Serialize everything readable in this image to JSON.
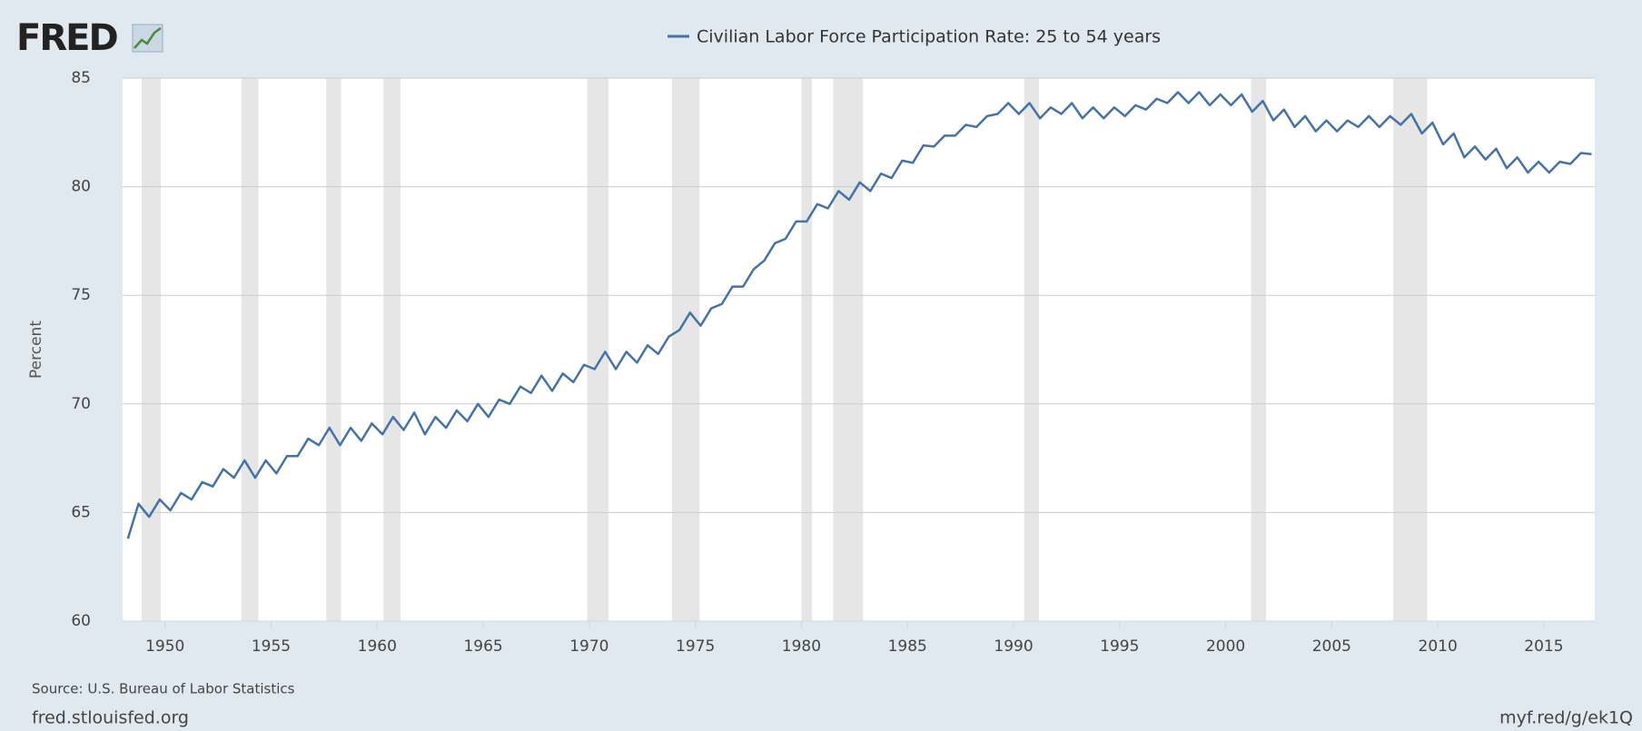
{
  "logo": "FRED",
  "chart_data": {
    "type": "line",
    "ylabel": "Percent",
    "xlim": [
      1948,
      2017.4
    ],
    "xticks": [
      1950,
      1955,
      1960,
      1965,
      1970,
      1975,
      1980,
      1985,
      1990,
      1995,
      2000,
      2005,
      2010,
      2015
    ],
    "ylim": [
      60,
      85
    ],
    "yticks": [
      60,
      65,
      70,
      75,
      80,
      85
    ],
    "grid": true,
    "recessions": [
      [
        1948.9,
        1949.8
      ],
      [
        1953.6,
        1954.4
      ],
      [
        1957.6,
        1958.3
      ],
      [
        1960.3,
        1961.1
      ],
      [
        1969.9,
        1970.9
      ],
      [
        1973.9,
        1975.2
      ],
      [
        1980.0,
        1980.5
      ],
      [
        1981.5,
        1982.9
      ],
      [
        1990.5,
        1991.2
      ],
      [
        2001.2,
        2001.9
      ],
      [
        2007.9,
        2009.5
      ]
    ],
    "x": [
      1948.25,
      1948.75,
      1949.25,
      1949.75,
      1950.25,
      1950.75,
      1951.25,
      1951.75,
      1952.25,
      1952.75,
      1953.25,
      1953.75,
      1954.25,
      1954.75,
      1955.25,
      1955.75,
      1956.25,
      1956.75,
      1957.25,
      1957.75,
      1958.25,
      1958.75,
      1959.25,
      1959.75,
      1960.25,
      1960.75,
      1961.25,
      1961.75,
      1962.25,
      1962.75,
      1963.25,
      1963.75,
      1964.25,
      1964.75,
      1965.25,
      1965.75,
      1966.25,
      1966.75,
      1967.25,
      1967.75,
      1968.25,
      1968.75,
      1969.25,
      1969.75,
      1970.25,
      1970.75,
      1971.25,
      1971.75,
      1972.25,
      1972.75,
      1973.25,
      1973.75,
      1974.25,
      1974.75,
      1975.25,
      1975.75,
      1976.25,
      1976.75,
      1977.25,
      1977.75,
      1978.25,
      1978.75,
      1979.25,
      1979.75,
      1980.25,
      1980.75,
      1981.25,
      1981.75,
      1982.25,
      1982.75,
      1983.25,
      1983.75,
      1984.25,
      1984.75,
      1985.25,
      1985.75,
      1986.25,
      1986.75,
      1987.25,
      1987.75,
      1988.25,
      1988.75,
      1989.25,
      1989.75,
      1990.25,
      1990.75,
      1991.25,
      1991.75,
      1992.25,
      1992.75,
      1993.25,
      1993.75,
      1994.25,
      1994.75,
      1995.25,
      1995.75,
      1996.25,
      1996.75,
      1997.25,
      1997.75,
      1998.25,
      1998.75,
      1999.25,
      1999.75,
      2000.25,
      2000.75,
      2001.25,
      2001.75,
      2002.25,
      2002.75,
      2003.25,
      2003.75,
      2004.25,
      2004.75,
      2005.25,
      2005.75,
      2006.25,
      2006.75,
      2007.25,
      2007.75,
      2008.25,
      2008.75,
      2009.25,
      2009.75,
      2010.25,
      2010.75,
      2011.25,
      2011.75,
      2012.25,
      2012.75,
      2013.25,
      2013.75,
      2014.25,
      2014.75,
      2015.25,
      2015.75,
      2016.25,
      2016.75,
      2017.25
    ],
    "series": [
      {
        "name": "Civilian Labor Force Participation Rate: 25 to 54 years",
        "color": "#4572a7",
        "values": [
          63.8,
          65.4,
          64.8,
          65.6,
          65.1,
          65.9,
          65.6,
          66.4,
          66.2,
          67.0,
          66.6,
          67.4,
          66.6,
          67.4,
          66.8,
          67.6,
          67.6,
          68.4,
          68.1,
          68.9,
          68.1,
          68.9,
          68.3,
          69.1,
          68.6,
          69.4,
          68.8,
          69.6,
          68.6,
          69.4,
          68.9,
          69.7,
          69.2,
          70.0,
          69.4,
          70.2,
          70.0,
          70.8,
          70.5,
          71.3,
          70.6,
          71.4,
          71.0,
          71.8,
          71.6,
          72.4,
          71.6,
          72.4,
          71.9,
          72.7,
          72.3,
          73.1,
          73.4,
          74.2,
          73.6,
          74.4,
          74.6,
          75.4,
          75.4,
          76.2,
          76.6,
          77.4,
          77.6,
          78.4,
          78.4,
          79.2,
          79.0,
          79.8,
          79.4,
          80.2,
          79.8,
          80.6,
          80.4,
          81.2,
          81.1,
          81.9,
          81.85,
          82.35,
          82.35,
          82.85,
          82.75,
          83.25,
          83.35,
          83.85,
          83.35,
          83.85,
          83.15,
          83.65,
          83.35,
          83.85,
          83.15,
          83.65,
          83.15,
          83.65,
          83.25,
          83.75,
          83.55,
          84.05,
          83.85,
          84.35,
          83.85,
          84.35,
          83.75,
          84.25,
          83.75,
          84.25,
          83.45,
          83.95,
          83.05,
          83.55,
          82.75,
          83.25,
          82.55,
          83.05,
          82.55,
          83.05,
          82.75,
          83.25,
          82.75,
          83.25,
          82.85,
          83.35,
          82.45,
          82.95,
          81.95,
          82.45,
          81.35,
          81.85,
          81.25,
          81.75,
          80.85,
          81.35,
          80.65,
          81.15,
          80.65,
          81.15,
          81.05,
          81.55,
          81.5
        ]
      }
    ]
  },
  "source": "Source: U.S. Bureau of Labor Statistics",
  "site": "fred.stlouisfed.org",
  "short_url": "myf.red/g/ek1Q"
}
